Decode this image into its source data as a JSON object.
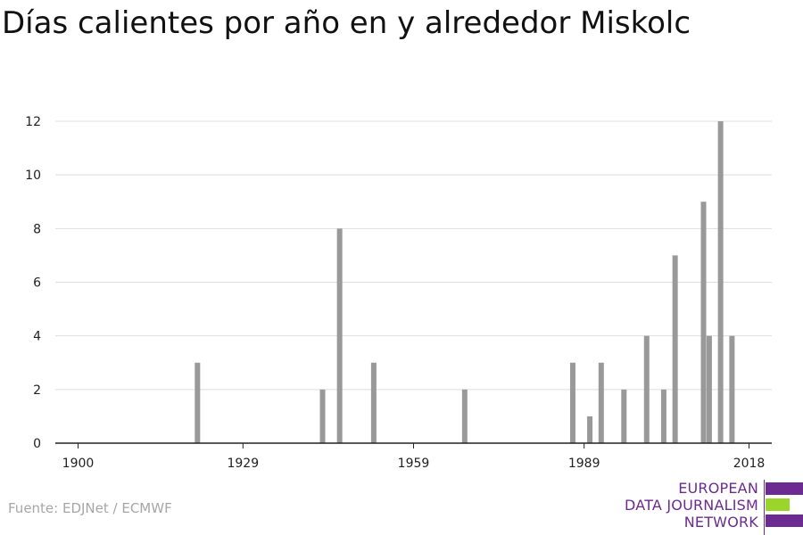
{
  "title": "Días calientes por año en y alrededor Miskolc",
  "source": "Fuente: EDJNet / ECMWF",
  "logo": {
    "lines": [
      "EUROPEAN",
      "DATA JOURNALISM",
      "NETWORK"
    ],
    "colors": {
      "purple": "#6b2b91",
      "green": "#9bd42a"
    }
  },
  "colors": {
    "bar": "#999999",
    "grid": "#dddddd",
    "axis": "#222222"
  },
  "chart_data": {
    "type": "bar",
    "title": "Días calientes por año en y alrededor Miskolc",
    "xlabel": "",
    "ylabel": "",
    "xlim": [
      1896,
      2022
    ],
    "ylim": [
      0,
      12
    ],
    "x_ticks": [
      1900,
      1929,
      1959,
      1989,
      2018
    ],
    "y_ticks": [
      0,
      2,
      4,
      6,
      8,
      10,
      12
    ],
    "grid": true,
    "points": [
      {
        "x": 1921,
        "y": 3
      },
      {
        "x": 1943,
        "y": 2
      },
      {
        "x": 1946,
        "y": 8
      },
      {
        "x": 1952,
        "y": 3
      },
      {
        "x": 1968,
        "y": 2
      },
      {
        "x": 1987,
        "y": 3
      },
      {
        "x": 1990,
        "y": 1
      },
      {
        "x": 1992,
        "y": 3
      },
      {
        "x": 1996,
        "y": 2
      },
      {
        "x": 2000,
        "y": 4
      },
      {
        "x": 2003,
        "y": 2
      },
      {
        "x": 2005,
        "y": 7
      },
      {
        "x": 2010,
        "y": 9
      },
      {
        "x": 2011,
        "y": 4
      },
      {
        "x": 2013,
        "y": 12
      },
      {
        "x": 2015,
        "y": 4
      }
    ]
  }
}
